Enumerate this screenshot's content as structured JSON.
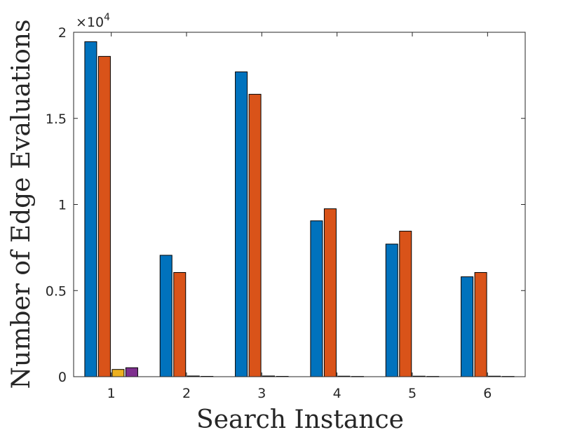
{
  "chart_data": {
    "type": "bar",
    "xlabel": "Search Instance",
    "ylabel": "Number of Edge Evaluations",
    "y_multiplier_label": "×10",
    "y_multiplier_exponent": "4",
    "ylim": [
      0,
      20000
    ],
    "y_ticks": [
      0,
      5000,
      10000,
      15000,
      20000
    ],
    "y_tick_labels": [
      "0",
      "0.5",
      "1",
      "1.5",
      "2"
    ],
    "categories": [
      "1",
      "2",
      "3",
      "4",
      "5",
      "6"
    ],
    "grid": false,
    "legend": "none",
    "series": [
      {
        "color": "#0072BD",
        "values": [
          19450,
          7050,
          17700,
          9050,
          7700,
          5800
        ]
      },
      {
        "color": "#D95319",
        "values": [
          18600,
          6050,
          16400,
          9750,
          8450,
          6050
        ]
      },
      {
        "color": "#EDB120",
        "values": [
          420,
          40,
          40,
          30,
          30,
          30
        ]
      },
      {
        "color": "#7E2F8E",
        "values": [
          520,
          20,
          20,
          15,
          15,
          15
        ]
      }
    ]
  }
}
